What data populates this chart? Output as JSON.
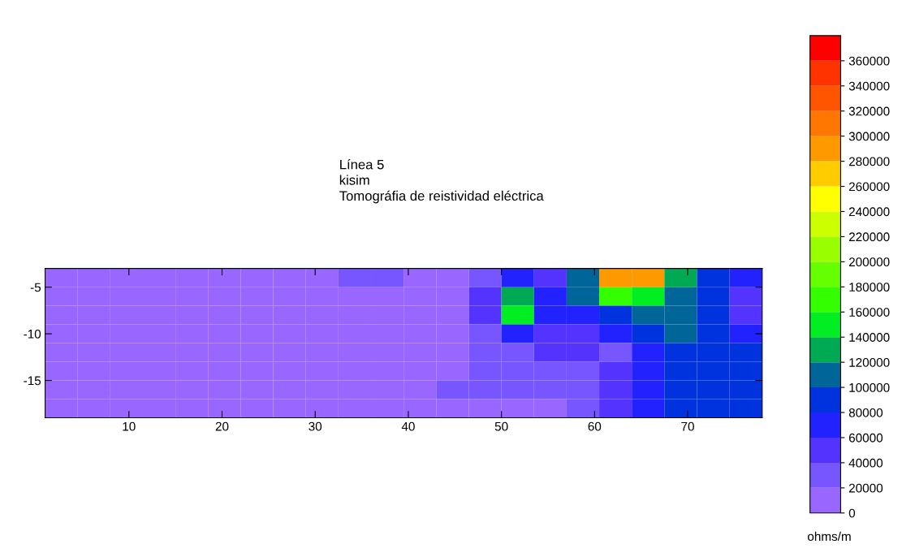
{
  "chart_data": {
    "type": "heatmap",
    "title": "Línea 5\nkisim\nTomográfia de reistividad eléctrica",
    "clabel": "ohms/m",
    "x": [
      2.75,
      6.25,
      9.75,
      13.25,
      16.75,
      20.25,
      23.75,
      27.25,
      30.75,
      34.25,
      37.75,
      41.25,
      44.75,
      48.25,
      51.75,
      55.25,
      58.75,
      62.25,
      65.75,
      69.25,
      72.75,
      76.25
    ],
    "y": [
      -4,
      -6,
      -8,
      -10,
      -12,
      -14,
      -16,
      -18
    ],
    "cells": [
      [
        10000,
        10000,
        10000,
        10000,
        10000,
        10000,
        10000,
        10000,
        10000,
        30000,
        30000,
        10000,
        10000,
        30000,
        70000,
        50000,
        110000,
        290000,
        290000,
        130000,
        90000,
        70000
      ],
      [
        10000,
        10000,
        10000,
        10000,
        10000,
        10000,
        10000,
        10000,
        10000,
        10000,
        10000,
        10000,
        10000,
        50000,
        130000,
        70000,
        110000,
        170000,
        150000,
        110000,
        90000,
        50000
      ],
      [
        10000,
        10000,
        10000,
        10000,
        10000,
        10000,
        10000,
        10000,
        10000,
        10000,
        10000,
        10000,
        10000,
        50000,
        150000,
        70000,
        70000,
        90000,
        110000,
        110000,
        90000,
        50000
      ],
      [
        10000,
        10000,
        10000,
        10000,
        10000,
        10000,
        10000,
        10000,
        10000,
        10000,
        10000,
        10000,
        10000,
        30000,
        70000,
        50000,
        50000,
        70000,
        90000,
        110000,
        90000,
        70000
      ],
      [
        10000,
        10000,
        10000,
        10000,
        10000,
        10000,
        10000,
        10000,
        10000,
        10000,
        10000,
        10000,
        10000,
        30000,
        30000,
        50000,
        50000,
        30000,
        70000,
        90000,
        90000,
        90000
      ],
      [
        10000,
        10000,
        10000,
        10000,
        10000,
        10000,
        10000,
        10000,
        10000,
        10000,
        10000,
        10000,
        10000,
        30000,
        30000,
        30000,
        30000,
        50000,
        70000,
        90000,
        90000,
        90000
      ],
      [
        10000,
        10000,
        10000,
        10000,
        10000,
        10000,
        10000,
        10000,
        10000,
        10000,
        10000,
        10000,
        30000,
        30000,
        30000,
        30000,
        30000,
        50000,
        70000,
        90000,
        90000,
        90000
      ],
      [
        10000,
        10000,
        10000,
        10000,
        10000,
        10000,
        10000,
        10000,
        10000,
        10000,
        10000,
        10000,
        10000,
        10000,
        10000,
        10000,
        30000,
        50000,
        70000,
        90000,
        90000,
        90000
      ]
    ],
    "xlim": [
      1,
      78
    ],
    "xticks": [
      10,
      20,
      30,
      40,
      50,
      60,
      70
    ],
    "ylim": [
      -19,
      -3
    ],
    "yticks": [
      -15,
      -10,
      -5
    ],
    "clim": [
      0,
      380000
    ],
    "cticks": [
      0,
      20000,
      40000,
      60000,
      80000,
      100000,
      120000,
      140000,
      160000,
      180000,
      200000,
      220000,
      240000,
      260000,
      280000,
      300000,
      320000,
      340000,
      360000
    ],
    "grid": false
  }
}
